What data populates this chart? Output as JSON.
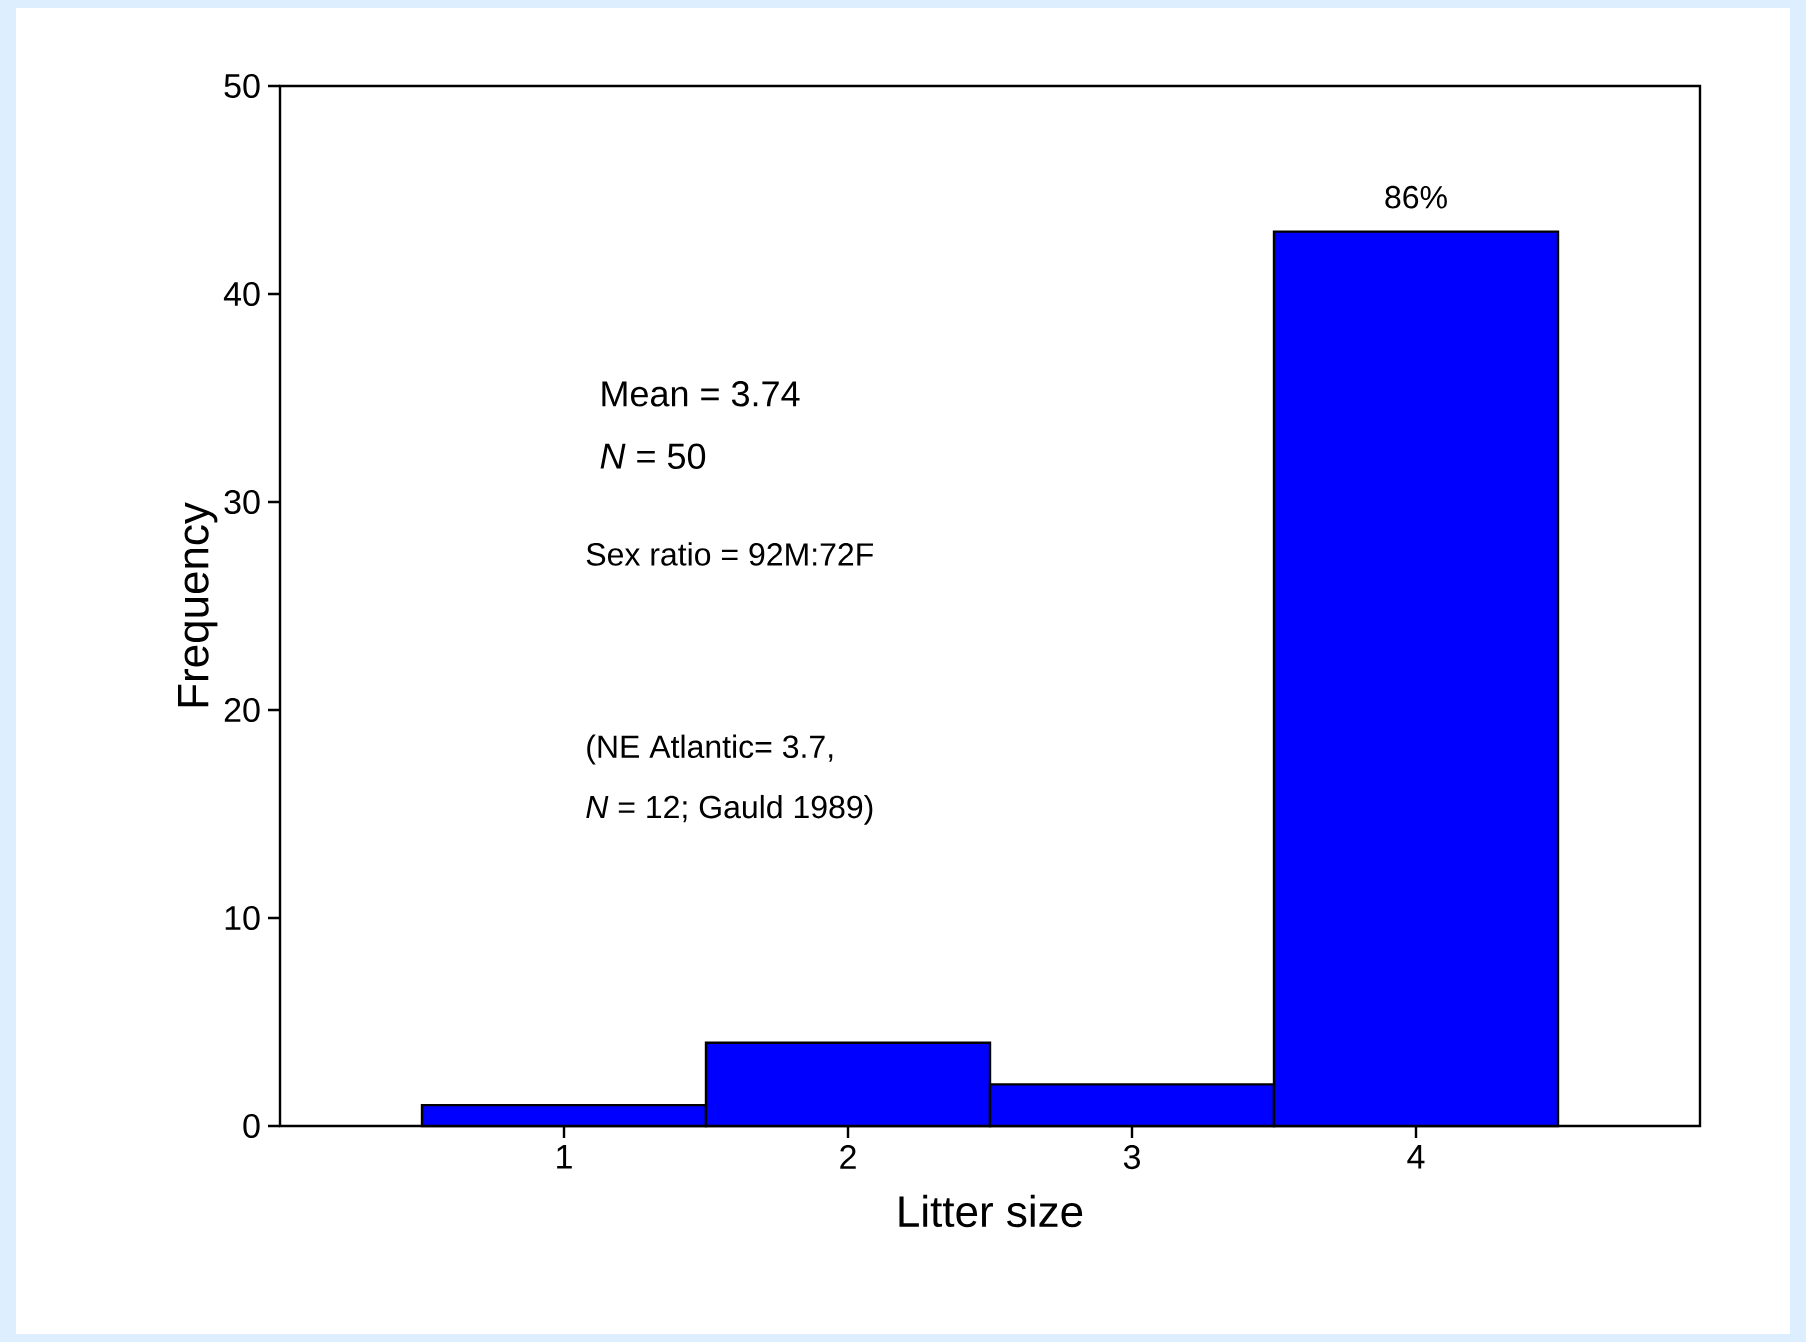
{
  "chart_data": {
    "type": "bar",
    "xlabel": "Litter size",
    "ylabel": "Frequency",
    "categories": [
      "1",
      "2",
      "3",
      "4"
    ],
    "values": [
      1,
      4,
      2,
      43
    ],
    "color": "#0000ff",
    "ylim": [
      0,
      50
    ],
    "yticks": [
      0,
      10,
      20,
      30,
      40,
      50
    ],
    "annotations": [
      {
        "text": "86%",
        "x": "4",
        "y": 43
      },
      "Mean = 3.74",
      "*N* = 50",
      "Sex ratio = 92M:72F",
      "(NE Atlantic= 3.7,",
      "*N* = 12; Gauld 1989)"
    ]
  }
}
